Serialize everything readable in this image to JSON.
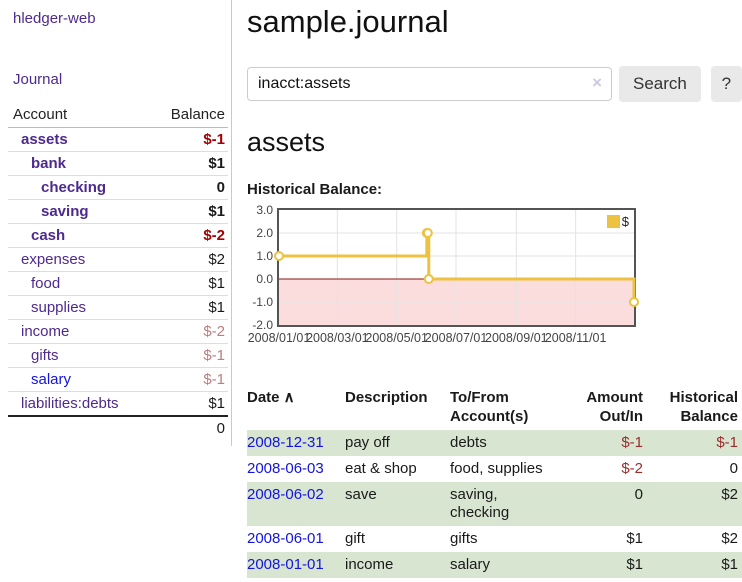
{
  "app": {
    "title": "hledger-web",
    "nav_journal": "Journal"
  },
  "sidebar": {
    "accounts_header": {
      "account": "Account",
      "balance": "Balance"
    },
    "accounts": [
      {
        "name": "assets",
        "indent": 1,
        "bold": true,
        "balance": "$-1",
        "negative": true,
        "blue": false
      },
      {
        "name": "bank",
        "indent": 2,
        "bold": true,
        "balance": "$1",
        "negative": false,
        "blue": false
      },
      {
        "name": "checking",
        "indent": 3,
        "bold": true,
        "balance": "0",
        "negative": false,
        "blue": false
      },
      {
        "name": "saving",
        "indent": 3,
        "bold": true,
        "balance": "$1",
        "negative": false,
        "blue": false
      },
      {
        "name": "cash",
        "indent": 2,
        "bold": true,
        "balance": "$-2",
        "negative": true,
        "blue": false
      },
      {
        "name": "expenses",
        "indent": 1,
        "bold": false,
        "balance": "$2",
        "negative": false,
        "blue": false
      },
      {
        "name": "food",
        "indent": 2,
        "bold": false,
        "balance": "$1",
        "negative": false,
        "blue": false
      },
      {
        "name": "supplies",
        "indent": 2,
        "bold": false,
        "balance": "$1",
        "negative": false,
        "blue": false
      },
      {
        "name": "income",
        "indent": 1,
        "bold": false,
        "balance": "$-2",
        "negative": true,
        "blue": false
      },
      {
        "name": "gifts",
        "indent": 2,
        "bold": false,
        "balance": "$-1",
        "negative": true,
        "blue": false
      },
      {
        "name": "salary",
        "indent": 2,
        "bold": false,
        "balance": "$-1",
        "negative": true,
        "blue": true
      },
      {
        "name": "liabilities:debts",
        "indent": 1,
        "bold": false,
        "balance": "$1",
        "negative": false,
        "blue": false
      }
    ],
    "total": "0"
  },
  "header": {
    "title": "sample.journal"
  },
  "search": {
    "value": "inacct:assets",
    "clear_label": "×",
    "button": "Search",
    "help": "?"
  },
  "account_page": {
    "title": "assets",
    "chart_label": "Historical Balance:"
  },
  "chart_data": {
    "type": "line",
    "title": "Historical Balance:",
    "step": true,
    "xlim": [
      0,
      365
    ],
    "ylim": [
      -2.0,
      3.0
    ],
    "yticks": [
      3.0,
      2.0,
      1.0,
      0.0,
      -1.0,
      -2.0
    ],
    "xticks": [
      {
        "label": "2008/01/01",
        "x": 0
      },
      {
        "label": "2008/03/01",
        "x": 60
      },
      {
        "label": "2008/05/01",
        "x": 121
      },
      {
        "label": "2008/07/01",
        "x": 182
      },
      {
        "label": "2008/09/01",
        "x": 244
      },
      {
        "label": "2008/11/01",
        "x": 305
      }
    ],
    "series": [
      {
        "name": "$",
        "color": "#edc240",
        "points": [
          {
            "date": "2008-01-01",
            "x": 0,
            "y": 1
          },
          {
            "date": "2008-06-01",
            "x": 152,
            "y": 2
          },
          {
            "date": "2008-06-02",
            "x": 153,
            "y": 2
          },
          {
            "date": "2008-06-03",
            "x": 154,
            "y": 0
          },
          {
            "date": "2008-12-31",
            "x": 365,
            "y": -1
          }
        ]
      }
    ],
    "grid_color": "#e3e3e3",
    "border_color": "#545454",
    "zero_line_color": "#8f1010",
    "negative_region_color": "#fcdddd",
    "legend_position": "top-right",
    "legend": "$"
  },
  "register": {
    "sort_indicator": "∧",
    "headers": [
      {
        "line1": "Date",
        "line2": "",
        "align": "left",
        "sorted": true
      },
      {
        "line1": "Description",
        "line2": "",
        "align": "left",
        "sorted": false
      },
      {
        "line1": "To/From",
        "line2": "Account(s)",
        "align": "left",
        "sorted": false
      },
      {
        "line1": "Amount",
        "line2": "Out/In",
        "align": "right",
        "sorted": false
      },
      {
        "line1": "Historical",
        "line2": "Balance",
        "align": "right",
        "sorted": false
      }
    ],
    "rows": [
      {
        "date": "2008-12-31",
        "description": "pay off",
        "accounts": "debts",
        "amount": "$-1",
        "amount_negative": true,
        "balance": "$-1",
        "balance_negative": true,
        "shaded": true
      },
      {
        "date": "2008-06-03",
        "description": "eat & shop",
        "accounts": "food, supplies",
        "amount": "$-2",
        "amount_negative": true,
        "balance": "0",
        "balance_negative": false,
        "shaded": false
      },
      {
        "date": "2008-06-02",
        "description": "save",
        "accounts": "saving, checking",
        "amount": "0",
        "amount_negative": false,
        "balance": "$2",
        "balance_negative": false,
        "shaded": true
      },
      {
        "date": "2008-06-01",
        "description": "gift",
        "accounts": "gifts",
        "amount": "$1",
        "amount_negative": false,
        "balance": "$2",
        "balance_negative": false,
        "shaded": false
      },
      {
        "date": "2008-01-01",
        "description": "income",
        "accounts": "salary",
        "amount": "$1",
        "amount_negative": false,
        "balance": "$1",
        "balance_negative": false,
        "shaded": true
      }
    ]
  }
}
